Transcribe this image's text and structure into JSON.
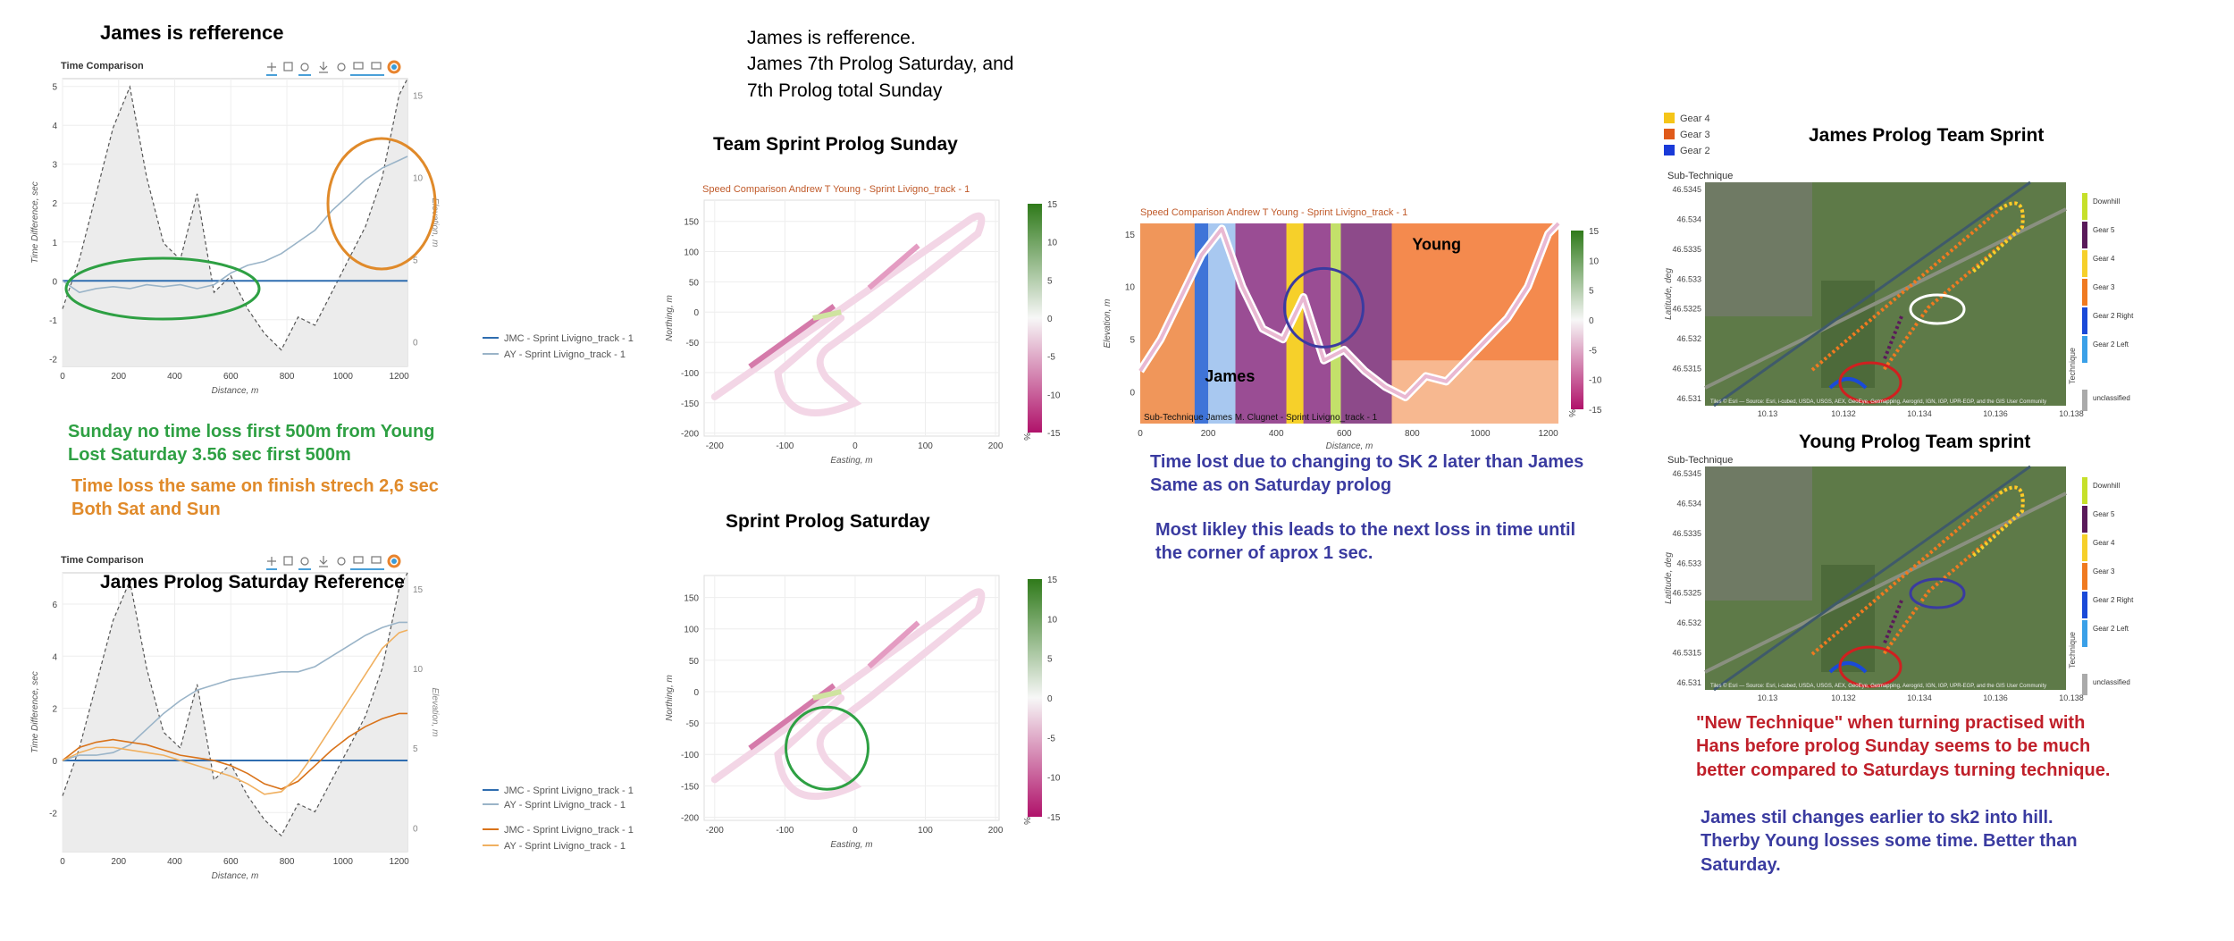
{
  "colors": {
    "green_note": "#2ea043",
    "orange_note": "#e08a2a",
    "blue_note": "#3a3ba0",
    "red_note": "#c0202a",
    "jmc_line": "#2f6db0",
    "ay_line": "#9ab4c8",
    "jmc_sat": "#d9731a",
    "ay_sat": "#f0b060",
    "elev_fill": "#e8e8e8"
  },
  "labels": {
    "title_ref": "James is refference",
    "top_note": [
      "James is refference.",
      "James 7th Prolog Saturday, and",
      "7th Prolog total Sunday"
    ],
    "team_sprint_title": "Team Sprint Prolog Sunday",
    "sprint_title": "Sprint Prolog Saturday",
    "saturday_ref_title": "James Prolog Saturday Reference",
    "map_title_1": "James Prolog Team Sprint",
    "map_title_2": "Young Prolog Team sprint",
    "green_notes": [
      "Sunday no time loss first 500m from Young",
      "Lost Saturday 3.56 sec first 500m"
    ],
    "orange_notes": [
      "Time loss the same on finish strech 2,6 sec",
      "Both Sat and Sun"
    ],
    "blue_notes_1": [
      "Time lost due to  changing  to SK 2 later than James",
      "Same as on Saturday prolog"
    ],
    "blue_notes_2": [
      "Most likley this leads to the next loss in time until",
      "the corner of aprox 1 sec."
    ],
    "red_notes": [
      "\"New Technique\" when turning practised with",
      "Hans before prolog Sunday  seems to be much",
      "better compared to Saturdays turning technique."
    ],
    "blue_notes_3": [
      "James stil changes earlier to sk2 into hill.",
      "Therby Young losses some time. Better than",
      "Saturday."
    ],
    "james_label": "James",
    "young_label": "Young"
  },
  "chart_data": [
    {
      "type": "line",
      "title": "Time Comparison",
      "xlabel": "Distance, m",
      "ylabel": "Time Difference, sec",
      "y2label": "Elevation, m",
      "xlim": [
        0,
        1230
      ],
      "ylim": [
        -2.2,
        5.2
      ],
      "y2lim": [
        -1.5,
        16
      ],
      "xticks": [
        0,
        200,
        400,
        600,
        800,
        1000,
        1200
      ],
      "yticks": [
        -2,
        -1,
        0,
        1,
        2,
        3,
        4,
        5
      ],
      "y2ticks": [
        0,
        5,
        10,
        15
      ],
      "legend": [
        "JMC - Sprint Livigno_track - 1",
        "AY - Sprint Livigno_track - 1"
      ],
      "x": [
        0,
        60,
        120,
        180,
        240,
        300,
        360,
        420,
        480,
        540,
        600,
        660,
        720,
        780,
        840,
        900,
        960,
        1020,
        1080,
        1140,
        1200,
        1230
      ],
      "series": [
        {
          "name": "JMC - Sprint Livigno_track - 1",
          "values": [
            0,
            0,
            0,
            0,
            0,
            0,
            0,
            0,
            0,
            0,
            0,
            0,
            0,
            0,
            0,
            0,
            0,
            0,
            0,
            0,
            0,
            0
          ]
        },
        {
          "name": "AY - Sprint Livigno_track - 1",
          "values": [
            0,
            -0.3,
            -0.2,
            -0.15,
            -0.2,
            -0.1,
            -0.15,
            -0.1,
            -0.2,
            -0.1,
            0.2,
            0.4,
            0.5,
            0.7,
            1.0,
            1.3,
            1.8,
            2.2,
            2.6,
            2.9,
            3.1,
            3.2
          ]
        }
      ],
      "elevation": [
        2,
        5,
        9,
        13,
        15.5,
        10,
        6,
        5,
        9,
        3,
        4,
        2,
        0.5,
        -0.5,
        1.5,
        1,
        3,
        5,
        7,
        10,
        15,
        16
      ]
    },
    {
      "type": "line",
      "title": "Time Comparison",
      "xlabel": "Distance, m",
      "ylabel": "Time Difference, sec",
      "y2label": "Elevation, m",
      "xlim": [
        0,
        1230
      ],
      "ylim": [
        -3.5,
        7.2
      ],
      "y2lim": [
        -1.5,
        16
      ],
      "xticks": [
        0,
        200,
        400,
        600,
        800,
        1000,
        1200
      ],
      "yticks": [
        -2,
        0,
        2,
        4,
        6
      ],
      "y2ticks": [
        0,
        5,
        10,
        15
      ],
      "legend": [
        "JMC - Sprint Livigno_track - 1",
        "AY - Sprint Livigno_track - 1",
        "JMC - Sprint Livigno_track - 1",
        "AY - Sprint Livigno_track - 1"
      ],
      "x": [
        0,
        60,
        120,
        180,
        240,
        300,
        360,
        420,
        480,
        540,
        600,
        660,
        720,
        780,
        840,
        900,
        960,
        1020,
        1080,
        1140,
        1200,
        1230
      ],
      "series": [
        {
          "name": "JMC - Sprint Livigno_track - 1",
          "values": [
            0,
            0,
            0,
            0,
            0,
            0,
            0,
            0,
            0,
            0,
            0,
            0,
            0,
            0,
            0,
            0,
            0,
            0,
            0,
            0,
            0,
            0
          ]
        },
        {
          "name": "AY - Sprint Livigno_track - 1",
          "values": [
            0,
            0.2,
            0.2,
            0.3,
            0.6,
            1.2,
            1.8,
            2.3,
            2.7,
            2.9,
            3.1,
            3.2,
            3.3,
            3.4,
            3.4,
            3.6,
            4.0,
            4.4,
            4.8,
            5.1,
            5.3,
            5.3
          ]
        },
        {
          "name": "JMC - Sprint Livigno_track - 1",
          "values": [
            0,
            0.5,
            0.7,
            0.8,
            0.7,
            0.6,
            0.4,
            0.2,
            0.1,
            0.0,
            -0.2,
            -0.5,
            -0.9,
            -1.1,
            -0.8,
            -0.2,
            0.4,
            0.9,
            1.3,
            1.6,
            1.8,
            1.8
          ]
        },
        {
          "name": "AY - Sprint Livigno_track - 1",
          "values": [
            0,
            0.3,
            0.5,
            0.5,
            0.4,
            0.3,
            0.2,
            0.0,
            -0.2,
            -0.4,
            -0.6,
            -0.9,
            -1.3,
            -1.2,
            -0.6,
            0.3,
            1.3,
            2.3,
            3.3,
            4.3,
            4.9,
            5.0
          ]
        }
      ],
      "elevation": [
        2,
        5,
        9,
        13,
        15.5,
        10,
        6,
        5,
        9,
        3,
        4,
        2,
        0.5,
        -0.5,
        1.5,
        1,
        3,
        5,
        7,
        10,
        15,
        16
      ]
    },
    {
      "type": "scatter",
      "title": "Speed Comparison Andrew T Young - Sprint Livigno_track - 1",
      "xlabel": "Easting, m",
      "ylabel": "Northing, m",
      "xlim": [
        -215,
        205
      ],
      "ylim": [
        -205,
        185
      ],
      "xticks": [
        -200,
        -100,
        0,
        100,
        200
      ],
      "yticks": [
        -200,
        -150,
        -100,
        -50,
        0,
        50,
        100,
        150
      ],
      "colorbar_ticks": [
        15,
        10,
        5,
        0,
        -5,
        -10,
        -15
      ],
      "colorbar_label": "%"
    },
    {
      "type": "scatter",
      "title": "",
      "xlabel": "Easting, m",
      "ylabel": "Northing, m",
      "xlim": [
        -215,
        205
      ],
      "ylim": [
        -205,
        185
      ],
      "xticks": [
        -200,
        -100,
        0,
        100,
        200
      ],
      "yticks": [
        -200,
        -150,
        -100,
        -50,
        0,
        50,
        100,
        150
      ],
      "colorbar_ticks": [
        15,
        10,
        5,
        0,
        -5,
        -10,
        -15
      ],
      "colorbar_label": "%"
    },
    {
      "type": "area",
      "title": "Speed Comparison Andrew T Young - Sprint Livigno_track - 1",
      "subtitle": "Sub-Technique James M. Clugnet - Sprint Livigno_track - 1",
      "xlabel": "Distance, m",
      "ylabel": "Elevation, m",
      "xlim": [
        0,
        1230
      ],
      "ylim": [
        -3,
        16
      ],
      "xticks": [
        0,
        200,
        400,
        600,
        800,
        1000,
        1200
      ],
      "yticks": [
        0,
        5,
        10,
        15
      ],
      "colorbar_ticks": [
        15,
        10,
        5,
        0,
        -5,
        -10,
        -15
      ],
      "colorbar_label": "%",
      "x": [
        0,
        60,
        120,
        180,
        240,
        300,
        360,
        420,
        480,
        540,
        600,
        660,
        720,
        780,
        840,
        900,
        960,
        1020,
        1080,
        1140,
        1200,
        1230
      ],
      "elevation": [
        2,
        5,
        9,
        13,
        15.5,
        10,
        6,
        5,
        9,
        3,
        4,
        2,
        0.5,
        -0.5,
        1.5,
        1,
        3,
        5,
        7,
        10,
        15,
        16
      ]
    },
    {
      "type": "scatter",
      "title": "Sub-Technique",
      "xlabel": "Longitude, deg",
      "ylabel": "Latitude, deg",
      "xticks": [
        "10.13",
        "10.132",
        "10.134",
        "10.136",
        "10.138"
      ],
      "yticks": [
        "46.5345",
        "46.534",
        "46.5335",
        "46.533",
        "46.5325",
        "46.532",
        "46.5315",
        "46.531"
      ],
      "legend": [
        "Downhill",
        "Gear 5",
        "Gear 4",
        "Gear 3",
        "Gear 2 Right",
        "Gear 2 Left",
        "unclassified"
      ],
      "legend_title": "Technique",
      "gear_legend": [
        "Gear 4",
        "Gear 3",
        "Gear 2"
      ],
      "attribution": "Tiles © Esri — Source: Esri, i-cubed, USDA, USGS, AEX, GeoEye, Getmapping, Aerogrid, IGN, IGP, UPR-EGP, and the GIS User Community"
    },
    {
      "type": "scatter",
      "title": "Sub-Technique",
      "xlabel": "Longitude, deg",
      "ylabel": "Latitude, deg",
      "xticks": [
        "10.13",
        "10.132",
        "10.134",
        "10.136",
        "10.138"
      ],
      "yticks": [
        "46.5345",
        "46.534",
        "46.5335",
        "46.533",
        "46.5325",
        "46.532",
        "46.5315",
        "46.531"
      ],
      "legend": [
        "Downhill",
        "Gear 5",
        "Gear 4",
        "Gear 3",
        "Gear 2 Right",
        "Gear 2 Left",
        "unclassified"
      ],
      "legend_title": "Technique",
      "attribution": "Tiles © Esri — Source: Esri, i-cubed, USDA, USGS, AEX, GeoEye, Getmapping, Aerogrid, IGN, IGP, UPR-EGP, and the GIS User Community"
    }
  ]
}
